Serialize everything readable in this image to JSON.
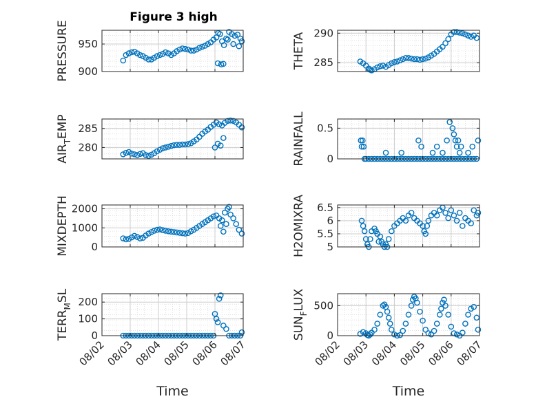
{
  "figure": {
    "title": "Figure 3 high",
    "marker_color": "#0072BD",
    "axis_color": "#262626",
    "grid_color": "#d9d9d9"
  },
  "chart_data": [
    {
      "type": "scatter",
      "ylabel": "PRESSURE",
      "ylabel_sub": null,
      "ylim": [
        900,
        975
      ],
      "yticks": [
        900,
        950
      ],
      "ytick_labels": [
        "900",
        "950"
      ],
      "xlim": [
        0,
        5
      ],
      "xticks": [
        0,
        1,
        2,
        3,
        4,
        5
      ],
      "grid": true,
      "minor_grid": true,
      "x": [
        0.75,
        0.85,
        0.95,
        1.05,
        1.15,
        1.25,
        1.35,
        1.45,
        1.55,
        1.65,
        1.75,
        1.85,
        1.95,
        2.05,
        2.15,
        2.25,
        2.35,
        2.45,
        2.55,
        2.65,
        2.75,
        2.85,
        2.95,
        3.05,
        3.15,
        3.25,
        3.35,
        3.45,
        3.55,
        3.65,
        3.75,
        3.85,
        3.95,
        4.05,
        4.12,
        4.18,
        4.25,
        4.32,
        4.4,
        4.5,
        4.6,
        4.7,
        4.8,
        4.9,
        4.95,
        4.1,
        4.22,
        4.3,
        4.45,
        4.65,
        4.85
      ],
      "y": [
        920,
        930,
        933,
        935,
        936,
        933,
        930,
        928,
        925,
        922,
        922,
        925,
        928,
        930,
        932,
        935,
        933,
        930,
        933,
        937,
        940,
        942,
        941,
        940,
        938,
        938,
        940,
        943,
        945,
        947,
        950,
        953,
        958,
        962,
        970,
        968,
        955,
        948,
        960,
        972,
        968,
        965,
        967,
        960,
        955,
        915,
        913,
        914,
        958,
        950,
        946
      ]
    },
    {
      "type": "scatter",
      "ylabel": "THETA",
      "ylabel_sub": null,
      "ylim": [
        283.5,
        290.5
      ],
      "yticks": [
        285,
        290
      ],
      "ytick_labels": [
        "285",
        "290"
      ],
      "xlim": [
        0,
        5
      ],
      "xticks": [
        0,
        1,
        2,
        3,
        4,
        5
      ],
      "grid": true,
      "minor_grid": true,
      "x": [
        0.8,
        0.9,
        1.0,
        1.1,
        1.15,
        1.2,
        1.3,
        1.4,
        1.5,
        1.6,
        1.7,
        1.8,
        1.9,
        2.0,
        2.1,
        2.2,
        2.3,
        2.4,
        2.5,
        2.6,
        2.7,
        2.8,
        2.9,
        3.0,
        3.1,
        3.2,
        3.3,
        3.4,
        3.5,
        3.6,
        3.7,
        3.8,
        3.9,
        4.0,
        4.1,
        4.2,
        4.3,
        4.4,
        4.5,
        4.6,
        4.7,
        4.8,
        4.9
      ],
      "y": [
        285.2,
        284.9,
        284.5,
        284.0,
        283.8,
        283.7,
        283.9,
        284.2,
        284.4,
        284.5,
        284.3,
        284.6,
        284.9,
        285.1,
        285.2,
        285.4,
        285.6,
        285.8,
        285.8,
        285.7,
        285.6,
        285.6,
        285.5,
        285.6,
        285.7,
        285.9,
        286.2,
        286.5,
        286.9,
        287.3,
        287.7,
        288.3,
        289.0,
        289.8,
        290.2,
        290.2,
        290.1,
        290.0,
        289.8,
        289.6,
        289.4,
        289.6,
        289.2
      ]
    },
    {
      "type": "scatter",
      "ylabel": "AIR",
      "ylabel_sub": "T",
      "ylabel_rest": "EMP",
      "ylim": [
        277,
        287.5
      ],
      "yticks": [
        280,
        285
      ],
      "ytick_labels": [
        "280",
        "285"
      ],
      "xlim": [
        0,
        5
      ],
      "xticks": [
        0,
        1,
        2,
        3,
        4,
        5
      ],
      "grid": true,
      "minor_grid": true,
      "x": [
        0.75,
        0.85,
        0.95,
        1.05,
        1.15,
        1.25,
        1.35,
        1.45,
        1.55,
        1.65,
        1.75,
        1.85,
        1.95,
        2.05,
        2.15,
        2.25,
        2.35,
        2.45,
        2.55,
        2.65,
        2.75,
        2.85,
        2.95,
        3.05,
        3.15,
        3.25,
        3.35,
        3.45,
        3.55,
        3.65,
        3.75,
        3.85,
        3.95,
        4.05,
        4.15,
        4.25,
        4.35,
        4.45,
        4.55,
        4.65,
        4.75,
        4.85,
        4.95,
        4.0,
        4.1,
        4.2,
        4.3
      ],
      "y": [
        278.2,
        278.6,
        278.8,
        278.4,
        278.2,
        278.0,
        278.3,
        278.5,
        278.0,
        277.8,
        278.1,
        278.5,
        279.0,
        279.4,
        279.8,
        280.0,
        280.2,
        280.4,
        280.6,
        280.7,
        280.7,
        280.8,
        280.8,
        280.9,
        281.1,
        281.6,
        282.1,
        282.8,
        283.6,
        284.2,
        284.7,
        285.4,
        286.0,
        286.6,
        286.1,
        285.8,
        286.5,
        287.0,
        287.1,
        287.0,
        286.6,
        286.0,
        285.3,
        280.0,
        281.0,
        280.5,
        282.5
      ]
    },
    {
      "type": "scatter",
      "ylabel": "RAINFALL",
      "ylabel_sub": null,
      "ylim": [
        0,
        0.65
      ],
      "yticks": [
        0,
        0.5
      ],
      "ytick_labels": [
        "0",
        "0.5"
      ],
      "xlim": [
        0,
        5
      ],
      "xticks": [
        0,
        1,
        2,
        3,
        4,
        5
      ],
      "grid": true,
      "minor_grid": true,
      "x": [
        0.82,
        0.85,
        0.88,
        0.92,
        0.95,
        1.0,
        1.1,
        1.2,
        1.3,
        1.4,
        1.5,
        1.6,
        1.7,
        1.8,
        1.9,
        2.0,
        2.1,
        2.2,
        2.3,
        2.4,
        2.5,
        2.6,
        2.7,
        2.8,
        2.9,
        3.0,
        3.1,
        3.2,
        3.3,
        3.4,
        3.5,
        3.6,
        3.7,
        3.8,
        3.9,
        4.0,
        4.1,
        4.2,
        4.3,
        4.4,
        4.5,
        4.6,
        4.7,
        4.8,
        4.9,
        2.25,
        2.85,
        2.95,
        3.35,
        3.5,
        3.7,
        3.85,
        3.95,
        4.05,
        4.1,
        4.15,
        4.2,
        4.25,
        4.3,
        4.35,
        4.6,
        4.75,
        4.95,
        1.7
      ],
      "y": [
        0.3,
        0.2,
        0.3,
        0.2,
        0.0,
        0.0,
        0.0,
        0.0,
        0.0,
        0.0,
        0.0,
        0.0,
        0.0,
        0.0,
        0.0,
        0.0,
        0.0,
        0.0,
        0.0,
        0.0,
        0.0,
        0.0,
        0.0,
        0.0,
        0.0,
        0.0,
        0.0,
        0.0,
        0.0,
        0.0,
        0.0,
        0.0,
        0.0,
        0.0,
        0.0,
        0.0,
        0.0,
        0.0,
        0.0,
        0.0,
        0.0,
        0.0,
        0.0,
        0.0,
        0.0,
        0.1,
        0.3,
        0.2,
        0.1,
        0.2,
        0.1,
        0.3,
        0.6,
        0.5,
        0.4,
        0.3,
        0.2,
        0.3,
        0.1,
        0.2,
        0.1,
        0.2,
        0.3,
        0.1
      ]
    },
    {
      "type": "scatter",
      "ylabel": "MIXDEPTH",
      "ylabel_sub": null,
      "ylim": [
        0,
        2200
      ],
      "yticks": [
        0,
        1000,
        2000
      ],
      "ytick_labels": [
        "0",
        "1000",
        "2000"
      ],
      "xlim": [
        0,
        5
      ],
      "xticks": [
        0,
        1,
        2,
        3,
        4,
        5
      ],
      "grid": true,
      "minor_grid": true,
      "x": [
        0.75,
        0.85,
        0.95,
        1.05,
        1.15,
        1.25,
        1.35,
        1.45,
        1.55,
        1.65,
        1.75,
        1.85,
        1.95,
        2.05,
        2.15,
        2.25,
        2.35,
        2.45,
        2.55,
        2.65,
        2.75,
        2.85,
        2.95,
        3.05,
        3.15,
        3.25,
        3.35,
        3.45,
        3.55,
        3.65,
        3.75,
        3.85,
        3.95,
        4.05,
        4.15,
        4.25,
        4.35,
        4.45,
        4.55,
        4.65,
        4.75,
        4.85,
        4.95,
        4.2,
        4.3,
        4.4,
        4.5
      ],
      "y": [
        450,
        400,
        420,
        500,
        580,
        520,
        450,
        480,
        600,
        700,
        780,
        850,
        900,
        920,
        880,
        850,
        820,
        800,
        780,
        760,
        740,
        720,
        700,
        730,
        820,
        900,
        1000,
        1100,
        1200,
        1300,
        1400,
        1500,
        1600,
        1650,
        1500,
        1400,
        1800,
        2000,
        1700,
        1500,
        1200,
        900,
        700,
        1100,
        800,
        1200,
        2100
      ]
    },
    {
      "type": "scatter",
      "ylabel": "H2OMIXRA",
      "ylabel_sub": null,
      "ylim": [
        5,
        6.6
      ],
      "yticks": [
        5,
        5.5,
        6,
        6.5
      ],
      "ytick_labels": [
        "5",
        "5.5",
        "6",
        "6.5"
      ],
      "xlim": [
        0,
        5
      ],
      "xticks": [
        0,
        1,
        2,
        3,
        4,
        5
      ],
      "grid": true,
      "minor_grid": true,
      "x": [
        0.85,
        0.9,
        0.95,
        1.0,
        1.05,
        1.1,
        1.15,
        1.2,
        1.3,
        1.35,
        1.4,
        1.45,
        1.5,
        1.55,
        1.6,
        1.65,
        1.7,
        1.75,
        1.8,
        1.9,
        2.0,
        2.1,
        2.2,
        2.3,
        2.4,
        2.5,
        2.6,
        2.7,
        2.8,
        2.9,
        3.0,
        3.05,
        3.1,
        3.15,
        3.2,
        3.3,
        3.4,
        3.5,
        3.6,
        3.7,
        3.8,
        3.9,
        4.0,
        4.1,
        4.2,
        4.3,
        4.4,
        4.5,
        4.6,
        4.7,
        4.8,
        4.9,
        4.95
      ],
      "y": [
        6.0,
        5.8,
        5.6,
        5.3,
        5.1,
        5.0,
        5.3,
        5.6,
        5.7,
        5.6,
        5.5,
        5.2,
        5.4,
        5.2,
        5.1,
        5.0,
        5.1,
        5.0,
        5.3,
        5.6,
        5.8,
        5.9,
        6.0,
        6.1,
        6.0,
        6.2,
        6.3,
        6.1,
        6.0,
        5.9,
        5.8,
        5.6,
        5.5,
        5.8,
        6.0,
        6.2,
        6.3,
        6.2,
        6.4,
        6.5,
        6.3,
        6.1,
        6.4,
        6.2,
        6.0,
        6.3,
        5.8,
        6.1,
        6.0,
        5.9,
        6.4,
        6.2,
        6.3
      ]
    },
    {
      "type": "scatter",
      "ylabel": "TERR",
      "ylabel_sub": "M",
      "ylabel_rest": "SL",
      "ylim": [
        0,
        250
      ],
      "yticks": [
        0,
        100,
        200
      ],
      "ytick_labels": [
        "0",
        "100",
        "200"
      ],
      "xlim": [
        0,
        5
      ],
      "xticks": [
        0,
        1,
        2,
        3,
        4,
        5
      ],
      "xtick_labels": [
        "08/02",
        "08/03",
        "08/04",
        "08/05",
        "08/06",
        "08/07"
      ],
      "xlabel": "Time",
      "grid": true,
      "minor_grid": true,
      "x": [
        0.75,
        0.85,
        0.95,
        1.05,
        1.15,
        1.25,
        1.35,
        1.45,
        1.55,
        1.65,
        1.75,
        1.85,
        1.95,
        2.05,
        2.15,
        2.25,
        2.35,
        2.45,
        2.55,
        2.65,
        2.75,
        2.85,
        2.95,
        3.05,
        3.15,
        3.25,
        3.35,
        3.45,
        3.55,
        3.65,
        3.75,
        3.85,
        3.95,
        4.0,
        4.05,
        4.1,
        4.15,
        4.2,
        4.3,
        4.4,
        4.5,
        4.6,
        4.7,
        4.8,
        4.9,
        4.95
      ],
      "y": [
        0,
        0,
        0,
        0,
        0,
        0,
        0,
        0,
        0,
        0,
        0,
        0,
        0,
        0,
        0,
        0,
        0,
        0,
        0,
        0,
        0,
        0,
        0,
        0,
        0,
        0,
        0,
        0,
        0,
        0,
        0,
        0,
        0,
        130,
        100,
        80,
        220,
        240,
        60,
        40,
        0,
        0,
        0,
        0,
        0,
        20
      ]
    },
    {
      "type": "scatter",
      "ylabel": "SUN",
      "ylabel_sub": "F",
      "ylabel_rest": "LUX",
      "ylim": [
        0,
        700
      ],
      "yticks": [
        0,
        500
      ],
      "ytick_labels": [
        "0",
        "500"
      ],
      "xlim": [
        0,
        5
      ],
      "xticks": [
        0,
        1,
        2,
        3,
        4,
        5
      ],
      "xtick_labels": [
        "08/02",
        "08/03",
        "08/04",
        "08/05",
        "08/06",
        "08/07"
      ],
      "xlabel": "Time",
      "grid": true,
      "minor_grid": true,
      "x": [
        0.8,
        0.9,
        1.0,
        1.05,
        1.1,
        1.15,
        1.2,
        1.3,
        1.4,
        1.5,
        1.6,
        1.65,
        1.7,
        1.75,
        1.8,
        1.85,
        1.9,
        2.0,
        2.1,
        2.2,
        2.3,
        2.4,
        2.5,
        2.6,
        2.65,
        2.7,
        2.75,
        2.8,
        2.9,
        3.0,
        3.1,
        3.2,
        3.3,
        3.4,
        3.5,
        3.6,
        3.65,
        3.7,
        3.75,
        3.8,
        3.9,
        4.0,
        4.1,
        4.2,
        4.3,
        4.4,
        4.5,
        4.6,
        4.7,
        4.8,
        4.9,
        4.95
      ],
      "y": [
        30,
        60,
        40,
        10,
        0,
        20,
        50,
        100,
        200,
        350,
        500,
        520,
        480,
        400,
        300,
        200,
        100,
        20,
        0,
        10,
        80,
        200,
        350,
        500,
        600,
        650,
        620,
        550,
        400,
        250,
        100,
        40,
        20,
        80,
        200,
        350,
        450,
        550,
        600,
        500,
        350,
        150,
        40,
        20,
        0,
        50,
        200,
        350,
        450,
        480,
        300,
        100
      ]
    }
  ]
}
